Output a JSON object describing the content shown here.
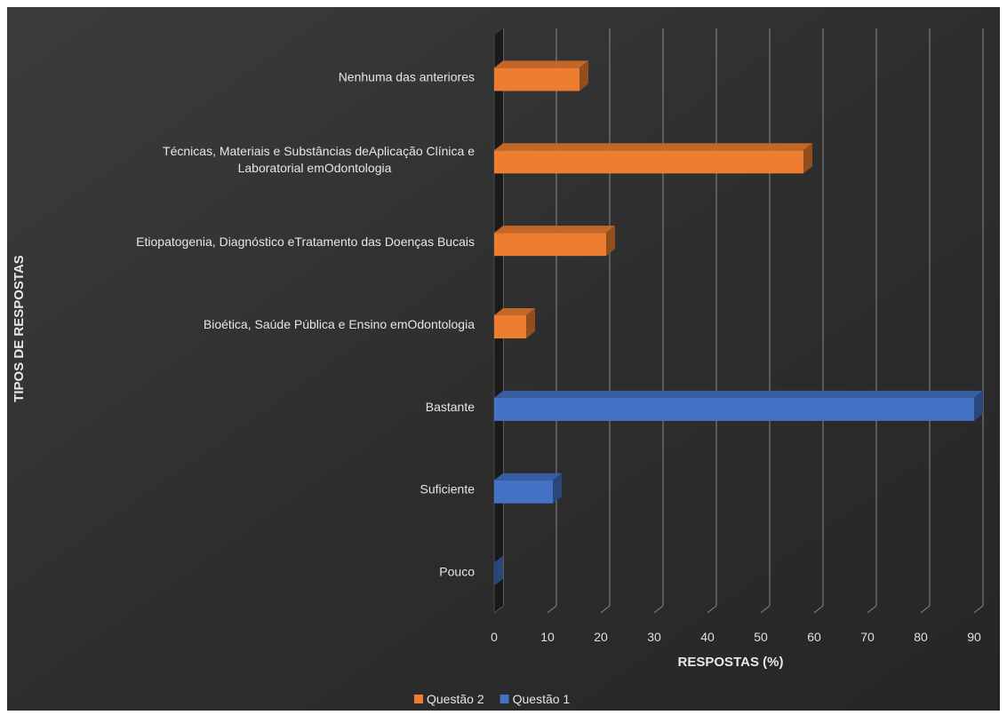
{
  "chart_data": {
    "type": "bar",
    "orientation": "horizontal",
    "style": "3d",
    "title": "",
    "xlabel": "RESPOSTAS (%)",
    "ylabel": "TIPOS DE RESPOSTAS",
    "xlim": [
      0,
      90
    ],
    "xticks": [
      0,
      10,
      20,
      30,
      40,
      50,
      60,
      70,
      80,
      90
    ],
    "grid": true,
    "legend_position": "bottom",
    "categories": [
      "Pouco",
      "Suficiente",
      "Bastante",
      "Bioética, Saúde Pública e Ensino emOdontologia",
      "Etiopatogenia, Diagnóstico eTratamento das Doenças Bucais",
      "Técnicas, Materiais e Substâncias deAplicação Clínica e Laboratorial emOdontologia",
      "Nenhuma das anteriores"
    ],
    "category_label_lines": [
      [
        "Pouco"
      ],
      [
        "Suficiente"
      ],
      [
        "Bastante"
      ],
      [
        "Bioética, Saúde Pública e Ensino emOdontologia"
      ],
      [
        "Etiopatogenia, Diagnóstico eTratamento das Doenças Bucais"
      ],
      [
        "Técnicas, Materiais e Substâncias deAplicação Clínica e",
        "Laboratorial emOdontologia"
      ],
      [
        "Nenhuma das anteriores"
      ]
    ],
    "series": [
      {
        "name": "Questão 1",
        "color": "#4472C4",
        "values": [
          0,
          11,
          90,
          null,
          null,
          null,
          null
        ]
      },
      {
        "name": "Questão 2",
        "color": "#ED7D31",
        "values": [
          null,
          null,
          null,
          6,
          21,
          58,
          16
        ]
      }
    ],
    "legend_order": [
      "Questão 2",
      "Questão 1"
    ]
  }
}
